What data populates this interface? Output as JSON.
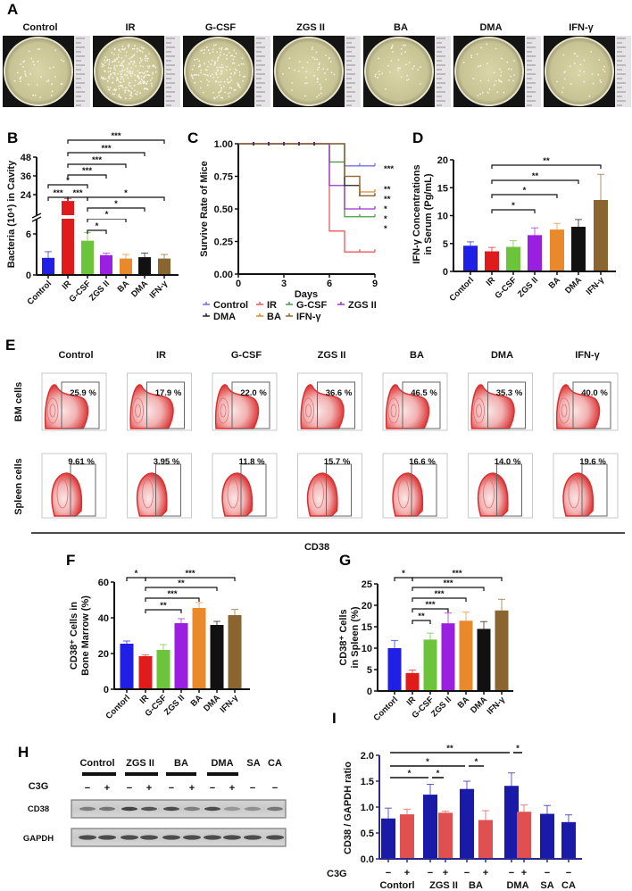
{
  "panel_letters": {
    "A": "A",
    "B": "B",
    "C": "C",
    "D": "D",
    "E": "E",
    "F": "F",
    "G": "G",
    "H": "H",
    "I": "I"
  },
  "panel_a": {
    "labels": [
      "Control",
      "IR",
      "G-CSF",
      "ZGS II",
      "BA",
      "DMA",
      "IFN-γ"
    ]
  },
  "panel_e": {
    "columns": [
      "Control",
      "IR",
      "G-CSF",
      "ZGS II",
      "BA",
      "DMA",
      "IFN-γ"
    ],
    "rows": [
      "BM cells",
      "Spleen cells"
    ],
    "bm_percent": [
      "25.9 %",
      "17.9 %",
      "22.0 %",
      "36.6 %",
      "46.5 %",
      "35.3 %",
      "40.0 %"
    ],
    "spleen_percent": [
      "9.61 %",
      "3.95 %",
      "11.8 %",
      "15.7 %",
      "16.6 %",
      "14.0 %",
      "19.6 %"
    ],
    "xaxis_label": "CD38"
  },
  "panel_h": {
    "groups": [
      "Control",
      "ZGS II",
      "BA",
      "DMA",
      "SA",
      "CA"
    ],
    "treatment_label": "C3G",
    "signs": [
      "−",
      "+",
      "−",
      "+",
      "−",
      "+",
      "−",
      "+",
      "−",
      "−"
    ],
    "bands": [
      "CD38",
      "GAPDH"
    ],
    "band_intensity_cd38": [
      0.45,
      0.5,
      0.8,
      0.7,
      0.75,
      0.45,
      0.75,
      0.3,
      0.35,
      0.5
    ]
  },
  "colors": {
    "control": "#1f1fe6",
    "ir": "#e01b1b",
    "gcsf": "#6cc43a",
    "zgs": "#9a1fe0",
    "ba": "#e8892c",
    "dma": "#111111",
    "ifn": "#8b6530",
    "c3g_minus": "#1a1aa8",
    "c3g_plus": "#e05050"
  },
  "chart_data": [
    {
      "panel": "B",
      "type": "bar",
      "categories": [
        "Control",
        "IR",
        "G-CSF",
        "ZGS II",
        "BA",
        "DMA",
        "IFN-γ"
      ],
      "values": [
        2.5,
        20,
        5.0,
        2.9,
        2.4,
        2.6,
        2.4
      ],
      "errors": [
        0.9,
        1.5,
        1.2,
        0.3,
        0.6,
        0.6,
        0.6
      ],
      "colors": [
        "#1f1fe6",
        "#e01b1b",
        "#6cc43a",
        "#9a1fe0",
        "#e8892c",
        "#111111",
        "#8b6530"
      ],
      "ylabel": "Bacteria (10⁴) in Cavity",
      "yticks": [
        "0",
        "6",
        "24",
        "36",
        "48"
      ],
      "broken_axis": [
        8,
        24
      ],
      "ylim": [
        0,
        48
      ],
      "brackets": [
        {
          "from": 1,
          "to": 6,
          "label": "***"
        },
        {
          "from": 1,
          "to": 5,
          "label": "***"
        },
        {
          "from": 1,
          "to": 4,
          "label": "***"
        },
        {
          "from": 1,
          "to": 3,
          "label": "***"
        },
        {
          "from": 0,
          "to": 2,
          "label": "*"
        },
        {
          "from": 0,
          "to": 1,
          "label": "***"
        },
        {
          "from": 1,
          "to": 2,
          "label": "***"
        },
        {
          "from": 2,
          "to": 6,
          "label": "*"
        },
        {
          "from": 2,
          "to": 5,
          "label": "*"
        },
        {
          "from": 2,
          "to": 4,
          "label": "*"
        },
        {
          "from": 2,
          "to": 3,
          "label": "*"
        }
      ]
    },
    {
      "panel": "C",
      "type": "line",
      "xlabel": "Days",
      "ylabel": "Survive Rate of Mice",
      "xticks": [
        "0",
        "3",
        "6",
        "9"
      ],
      "yticks": [
        "0.00",
        "0.25",
        "0.50",
        "0.75",
        "1.00"
      ],
      "xlim": [
        0,
        9
      ],
      "ylim": [
        0,
        1
      ],
      "series": [
        {
          "name": "Control",
          "color": "#6f6fe8",
          "steps": [
            [
              0,
              1
            ],
            [
              7,
              0.83
            ]
          ],
          "sig": "***"
        },
        {
          "name": "IR",
          "color": "#e85a5a",
          "steps": [
            [
              0,
              1
            ],
            [
              6,
              0.33
            ],
            [
              7,
              0.17
            ]
          ],
          "sig": ""
        },
        {
          "name": "G-CSF",
          "color": "#4a9a4a",
          "steps": [
            [
              0,
              1
            ],
            [
              6,
              0.86
            ],
            [
              7,
              0.44
            ]
          ],
          "sig": "*"
        },
        {
          "name": "ZGS II",
          "color": "#9a32d0",
          "steps": [
            [
              0,
              1
            ],
            [
              6,
              0.68
            ],
            [
              7,
              0.5
            ]
          ],
          "sig": "*"
        },
        {
          "name": "DMA",
          "color": "#222222",
          "steps": [
            [
              0,
              1
            ],
            [
              7,
              0.68
            ],
            [
              8,
              0.6
            ]
          ],
          "sig": "*"
        },
        {
          "name": "BA",
          "color": "#e0892c",
          "steps": [
            [
              0,
              1
            ],
            [
              7,
              0.75
            ],
            [
              8,
              0.63
            ]
          ],
          "sig": "**"
        },
        {
          "name": "IFN-γ",
          "color": "#8b6a3a",
          "steps": [
            [
              0,
              1
            ],
            [
              7,
              0.75
            ],
            [
              8,
              0.6
            ]
          ],
          "sig": "**"
        }
      ],
      "legend": "bottom"
    },
    {
      "panel": "D",
      "type": "bar",
      "categories": [
        "Contorl",
        "IR",
        "G-CSF",
        "ZGS II",
        "BA",
        "DMA",
        "IFN-γ"
      ],
      "values": [
        4.6,
        3.6,
        4.4,
        6.5,
        7.5,
        8.0,
        12.8
      ],
      "errors": [
        0.7,
        0.7,
        1.1,
        1.3,
        1.1,
        1.3,
        4.6
      ],
      "colors": [
        "#1f1fe6",
        "#e01b1b",
        "#6cc43a",
        "#9a1fe0",
        "#e8892c",
        "#111111",
        "#8b6530"
      ],
      "ylabel": [
        "IFN-γ Concentrations",
        "in Serum (Pg/mL)"
      ],
      "yticks": [
        "0",
        "5",
        "10",
        "15",
        "20"
      ],
      "ylim": [
        0,
        20
      ],
      "brackets": [
        {
          "from": 1,
          "to": 6,
          "label": "**"
        },
        {
          "from": 1,
          "to": 5,
          "label": "**"
        },
        {
          "from": 1,
          "to": 4,
          "label": "*"
        },
        {
          "from": 1,
          "to": 3,
          "label": "*"
        }
      ]
    },
    {
      "panel": "F",
      "type": "bar",
      "categories": [
        "Contorl",
        "IR",
        "G-CSF",
        "ZGS II",
        "BA",
        "DMA",
        "IFN-γ"
      ],
      "values": [
        25.5,
        18.5,
        22,
        37,
        45.5,
        36,
        41.5
      ],
      "errors": [
        1.5,
        0.7,
        3,
        2.5,
        3,
        2,
        3.2
      ],
      "colors": [
        "#1f1fe6",
        "#e01b1b",
        "#6cc43a",
        "#9a1fe0",
        "#e8892c",
        "#111111",
        "#8b6530"
      ],
      "ylabel": [
        "CD38⁺ Cells in",
        "Bone Marrow (%)"
      ],
      "yticks": [
        "0",
        "20",
        "40",
        "60"
      ],
      "ylim": [
        0,
        60
      ],
      "brackets": [
        {
          "from": 0,
          "to": 1,
          "label": "*"
        },
        {
          "from": 1,
          "to": 6,
          "label": "***"
        },
        {
          "from": 1,
          "to": 5,
          "label": "**"
        },
        {
          "from": 1,
          "to": 4,
          "label": "***"
        },
        {
          "from": 1,
          "to": 3,
          "label": "**"
        }
      ]
    },
    {
      "panel": "G",
      "type": "bar",
      "categories": [
        "Contorl",
        "IR",
        "G-CSF",
        "ZGS II",
        "BA",
        "DMA",
        "IFN-γ"
      ],
      "values": [
        10,
        4.2,
        12,
        15.8,
        16.4,
        14.5,
        18.8
      ],
      "errors": [
        1.8,
        0.7,
        1.5,
        2.4,
        2,
        1.7,
        2.6
      ],
      "colors": [
        "#1f1fe6",
        "#e01b1b",
        "#6cc43a",
        "#9a1fe0",
        "#e8892c",
        "#111111",
        "#8b6530"
      ],
      "ylabel": [
        "CD38⁺ Cells",
        "in Spleen (%)"
      ],
      "yticks": [
        "0",
        "5",
        "10",
        "15",
        "20",
        "25"
      ],
      "ylim": [
        0,
        25
      ],
      "brackets": [
        {
          "from": 0,
          "to": 1,
          "label": "*"
        },
        {
          "from": 1,
          "to": 6,
          "label": "***"
        },
        {
          "from": 1,
          "to": 5,
          "label": "***"
        },
        {
          "from": 1,
          "to": 4,
          "label": "***"
        },
        {
          "from": 1,
          "to": 3,
          "label": "***"
        },
        {
          "from": 1,
          "to": 2,
          "label": "**"
        }
      ]
    },
    {
      "panel": "I",
      "type": "bar",
      "categories": [
        "Contorl −",
        "Contorl +",
        "ZGS II −",
        "ZGS II +",
        "BA −",
        "BA +",
        "DMA −",
        "DMA +",
        "SA −",
        "CA −"
      ],
      "group_labels": [
        "Contorl",
        "ZGS II",
        "BA",
        "DMA",
        "SA",
        "CA"
      ],
      "treatment_label": "C3G",
      "signs": [
        "−",
        "+",
        "−",
        "+",
        "−",
        "+",
        "−",
        "+",
        "−",
        "−"
      ],
      "values": [
        0.78,
        0.86,
        1.24,
        0.89,
        1.35,
        0.75,
        1.41,
        0.91,
        0.87,
        0.71
      ],
      "errors": [
        0.2,
        0.1,
        0.2,
        0.03,
        0.15,
        0.18,
        0.25,
        0.13,
        0.16,
        0.14
      ],
      "colors": [
        "#1a1aa8",
        "#e05050",
        "#1a1aa8",
        "#e05050",
        "#1a1aa8",
        "#e05050",
        "#1a1aa8",
        "#e05050",
        "#1a1aa8",
        "#1a1aa8"
      ],
      "ylabel": "CD38 / GAPDH ratio",
      "yticks": [
        "0.0",
        "0.5",
        "1.0",
        "1.5",
        "2.0"
      ],
      "ylim": [
        0,
        2
      ],
      "brackets": [
        {
          "from": 0,
          "to": 6,
          "label": "**"
        },
        {
          "from": 6,
          "to": 7,
          "label": "*"
        },
        {
          "from": 0,
          "to": 4,
          "label": "*"
        },
        {
          "from": 4,
          "to": 5,
          "label": "*"
        },
        {
          "from": 0,
          "to": 2,
          "label": "*"
        },
        {
          "from": 2,
          "to": 3,
          "label": "*"
        }
      ]
    }
  ]
}
